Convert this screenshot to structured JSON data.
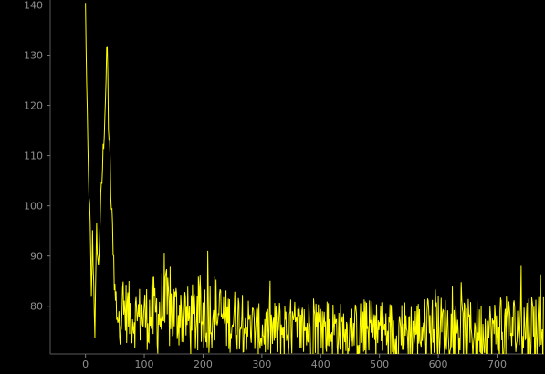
{
  "window": {
    "background_color": "#000000",
    "axis_color": "#5a5a5a",
    "tick_label_color": "#8f8f8f"
  },
  "chart_data": {
    "type": "line",
    "title": "",
    "xlabel": "",
    "ylabel": "",
    "xlim": [
      -60,
      780
    ],
    "ylim": [
      70.5,
      141
    ],
    "grid": false,
    "legend": "none",
    "x_ticks": [
      0,
      100,
      200,
      300,
      400,
      500,
      600,
      700
    ],
    "y_ticks": [
      80,
      90,
      100,
      110,
      120,
      130,
      140
    ],
    "series": [
      {
        "color": "#ffff00",
        "x_start": 0,
        "x_step": 1,
        "anchors": [
          [
            0,
            140
          ],
          [
            2,
            124
          ],
          [
            5,
            106
          ],
          [
            8,
            96
          ],
          [
            10,
            81
          ],
          [
            12,
            94
          ],
          [
            16,
            75
          ],
          [
            19,
            95
          ],
          [
            22,
            87
          ],
          [
            25,
            98
          ],
          [
            28,
            105
          ],
          [
            32,
            116
          ],
          [
            35,
            125
          ],
          [
            37,
            132
          ],
          [
            39,
            117
          ],
          [
            42,
            107
          ],
          [
            44,
            99
          ],
          [
            47,
            93
          ],
          [
            50,
            83
          ],
          [
            55,
            78
          ],
          [
            60,
            79
          ],
          [
            70,
            79
          ],
          [
            80,
            78
          ],
          [
            100,
            78
          ],
          [
            120,
            78.5
          ],
          [
            140,
            79
          ],
          [
            160,
            78.5
          ],
          [
            180,
            77
          ],
          [
            200,
            78
          ],
          [
            220,
            79.5
          ],
          [
            240,
            77
          ],
          [
            260,
            77.5
          ],
          [
            280,
            76
          ],
          [
            300,
            75
          ],
          [
            320,
            75
          ],
          [
            340,
            75.5
          ],
          [
            360,
            75
          ],
          [
            380,
            75.5
          ],
          [
            400,
            76
          ],
          [
            450,
            75
          ],
          [
            500,
            75
          ],
          [
            550,
            75
          ],
          [
            600,
            76
          ],
          [
            650,
            75
          ],
          [
            700,
            75
          ],
          [
            760,
            76
          ]
        ],
        "noise_amplitudes": [
          [
            0,
            1
          ],
          [
            50,
            3
          ],
          [
            55,
            5
          ],
          [
            100,
            5
          ],
          [
            130,
            7
          ],
          [
            170,
            5
          ],
          [
            200,
            7
          ],
          [
            230,
            5
          ],
          [
            260,
            5
          ],
          [
            300,
            4
          ],
          [
            330,
            5
          ],
          [
            360,
            5
          ],
          [
            400,
            5
          ],
          [
            450,
            4
          ],
          [
            470,
            5
          ],
          [
            550,
            5
          ],
          [
            600,
            5
          ],
          [
            650,
            5
          ],
          [
            700,
            5
          ],
          [
            760,
            6
          ]
        ]
      }
    ]
  }
}
